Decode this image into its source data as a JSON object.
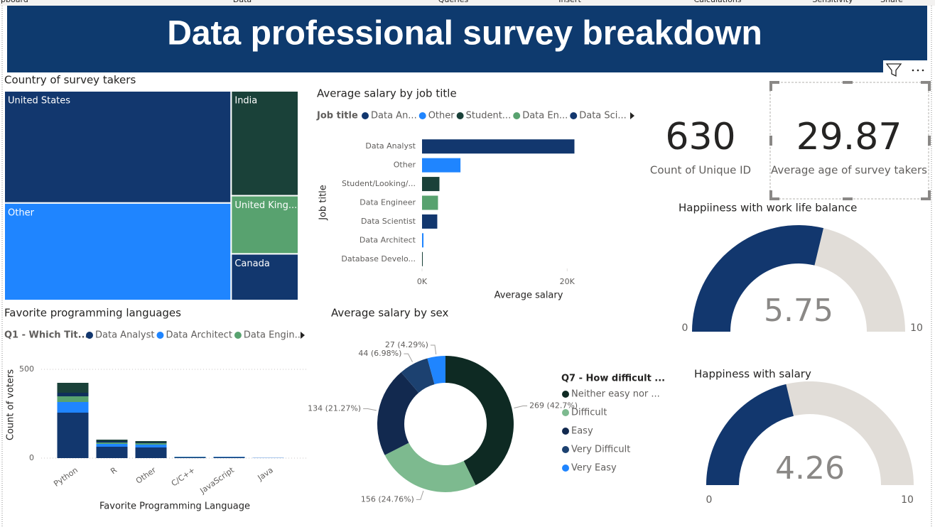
{
  "ribbon": [
    "ipboard",
    "Data",
    "Queries",
    "Insert",
    "Calculations",
    "Sensitivity",
    "Share"
  ],
  "header": {
    "title": "Data professional survey breakdown"
  },
  "cards": [
    {
      "value": 630,
      "label": "Count of Unique ID"
    },
    {
      "value": 29.87,
      "label": "Average age of survey takers"
    }
  ],
  "chart_data": [
    {
      "type": "treemap",
      "title": "Country of survey takers",
      "categories": [
        "United States",
        "Other",
        "India",
        "United King...",
        "Canada"
      ],
      "values": [
        260,
        226,
        72,
        40,
        32
      ],
      "colors": [
        "#12376e",
        "#1f85ff",
        "#1a4139",
        "#58a26f",
        "#12376e"
      ]
    },
    {
      "type": "bar",
      "orientation": "horizontal",
      "title": "Average salary by job title",
      "legend": {
        "title": "Job title",
        "items": [
          {
            "name": "Data An...",
            "color": "#12376e"
          },
          {
            "name": "Other",
            "color": "#1f85ff"
          },
          {
            "name": "Student...",
            "color": "#1a4139"
          },
          {
            "name": "Data En...",
            "color": "#58a26f"
          },
          {
            "name": "Data Sci...",
            "color": "#12376e"
          }
        ]
      },
      "categories": [
        "Data Analyst",
        "Other",
        "Student/Looking/...",
        "Data Engineer",
        "Data Scientist",
        "Data Architect",
        "Database Develo..."
      ],
      "values": [
        21000,
        5300,
        2400,
        2200,
        2100,
        200,
        100
      ],
      "colors": [
        "#12376e",
        "#1f85ff",
        "#1a4139",
        "#58a26f",
        "#12376e",
        "#1f85ff",
        "#1a4139"
      ],
      "xlim": [
        0,
        28000
      ],
      "xticks": [
        {
          "value": 0,
          "label": "0K"
        },
        {
          "value": 20000,
          "label": "20K"
        }
      ],
      "x_label": "Average salary",
      "y_label": "Job title"
    },
    {
      "type": "bar",
      "stacked": true,
      "title": "Favorite programming languages",
      "legend_title": "Q1 - Which Tit...",
      "categories": [
        "Python",
        "R",
        "Other",
        "C/C++",
        "JavaScript",
        "Java"
      ],
      "series": [
        {
          "name": "Data Analyst",
          "color": "#12376e",
          "values": [
            256,
            64,
            60,
            4,
            4,
            1
          ]
        },
        {
          "name": "Data Architect",
          "color": "#1f85ff",
          "values": [
            60,
            16,
            16,
            2,
            2,
            1
          ]
        },
        {
          "name": "Data Engin...",
          "color": "#58a26f",
          "values": [
            32,
            8,
            8,
            1,
            1,
            0
          ]
        },
        {
          "name": null,
          "color": "#0f2f5c",
          "values": [
            20,
            8,
            4,
            0,
            1,
            0
          ]
        },
        {
          "name": null,
          "color": "#1a4139",
          "values": [
            56,
            8,
            8,
            1,
            0,
            0
          ]
        }
      ],
      "ylim": [
        0,
        550
      ],
      "yticks": [
        0,
        500
      ],
      "grid": true,
      "x_label": "Favorite Programming Language",
      "y_label": "Count of voters"
    },
    {
      "type": "donut",
      "title": "Average salary by sex",
      "legend_title": "Q7 - How difficult ...",
      "categories": [
        "Neither easy nor ...",
        "Difficult",
        "Easy",
        "Very Difficult",
        "Very Easy"
      ],
      "values": [
        269,
        156,
        134,
        44,
        27
      ],
      "value_labels": [
        "269 (42.7%)",
        "156 (24.76%)",
        "134 (21.27%)",
        "44 (6.98%)",
        "27 (4.29%)"
      ],
      "colors": [
        "#0e2a23",
        "#7dba8f",
        "#12294f",
        "#1c4170",
        "#1f85ff"
      ]
    },
    {
      "type": "gauge",
      "title": "Happiiness with work life balance",
      "value": 5.75,
      "ylim": [
        0,
        10
      ],
      "yticks": [
        0,
        10
      ],
      "color": "#12376e",
      "track_color": "#e1ddd8"
    },
    {
      "type": "gauge",
      "title": "Happiness with salary",
      "value": 4.26,
      "ylim": [
        0,
        10
      ],
      "yticks": [
        0,
        10
      ],
      "color": "#12376e",
      "track_color": "#e1ddd8"
    }
  ]
}
